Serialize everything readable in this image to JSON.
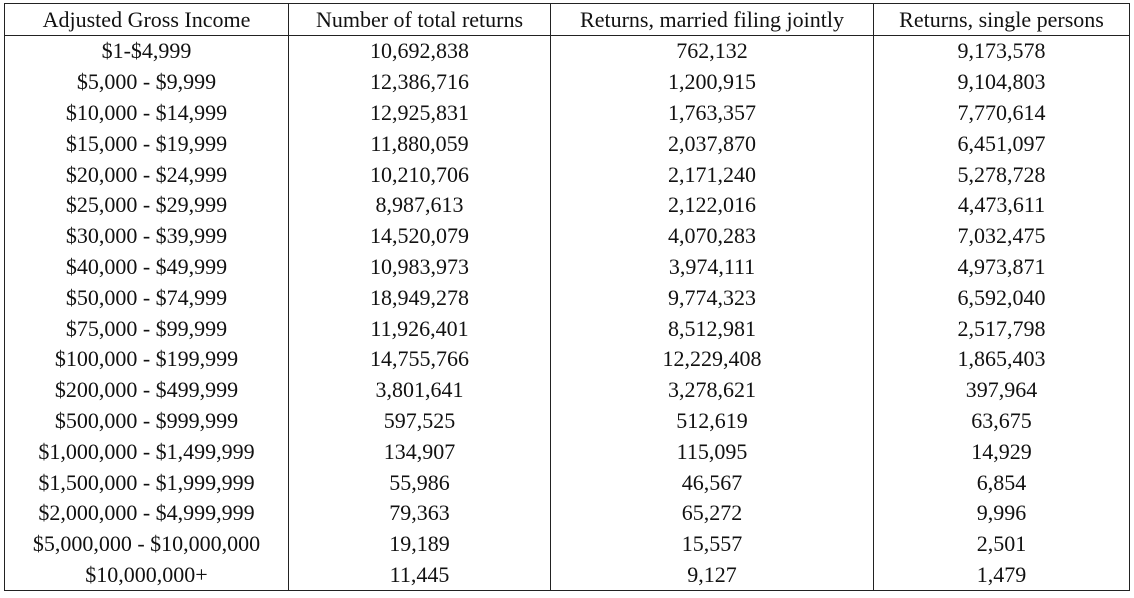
{
  "table": {
    "headers": [
      "Adjusted Gross Income",
      "Number of total returns",
      "Returns, married filing jointly",
      "Returns, single persons"
    ],
    "rows": [
      [
        "$1-$4,999",
        "10,692,838",
        "762,132",
        "9,173,578"
      ],
      [
        "$5,000 - $9,999",
        "12,386,716",
        "1,200,915",
        "9,104,803"
      ],
      [
        "$10,000 - $14,999",
        "12,925,831",
        "1,763,357",
        "7,770,614"
      ],
      [
        "$15,000 - $19,999",
        "11,880,059",
        "2,037,870",
        "6,451,097"
      ],
      [
        "$20,000 - $24,999",
        "10,210,706",
        "2,171,240",
        "5,278,728"
      ],
      [
        "$25,000 - $29,999",
        "8,987,613",
        "2,122,016",
        "4,473,611"
      ],
      [
        "$30,000 - $39,999",
        "14,520,079",
        "4,070,283",
        "7,032,475"
      ],
      [
        "$40,000 - $49,999",
        "10,983,973",
        "3,974,111",
        "4,973,871"
      ],
      [
        "$50,000 - $74,999",
        "18,949,278",
        "9,774,323",
        "6,592,040"
      ],
      [
        "$75,000 - $99,999",
        "11,926,401",
        "8,512,981",
        "2,517,798"
      ],
      [
        "$100,000 - $199,999",
        "14,755,766",
        "12,229,408",
        "1,865,403"
      ],
      [
        "$200,000 - $499,999",
        "3,801,641",
        "3,278,621",
        "397,964"
      ],
      [
        "$500,000 - $999,999",
        "597,525",
        "512,619",
        "63,675"
      ],
      [
        "$1,000,000 - $1,499,999",
        "134,907",
        "115,095",
        "14,929"
      ],
      [
        "$1,500,000 - $1,999,999",
        "55,986",
        "46,567",
        "6,854"
      ],
      [
        "$2,000,000 - $4,999,999",
        "79,363",
        "65,272",
        "9,996"
      ],
      [
        "$5,000,000 - $10,000,000",
        "19,189",
        "15,557",
        "2,501"
      ],
      [
        "$10,000,000+",
        "11,445",
        "9,127",
        "1,479"
      ]
    ]
  }
}
